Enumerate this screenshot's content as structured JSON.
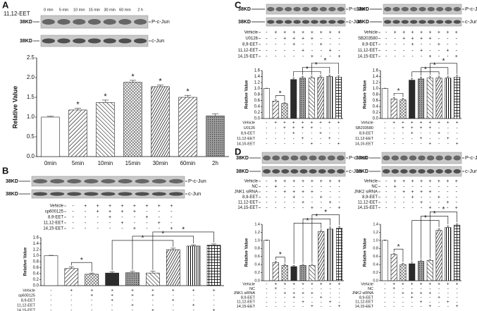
{
  "figures": [
    {
      "label": "A",
      "treatment": "11,12-EET",
      "lanes": [
        "0 min",
        "5 min",
        "10 min",
        "15 min",
        "30 min",
        "60 min",
        "2 h"
      ],
      "marker": "38KD",
      "bands": [
        "P-c-Jun",
        "c-Jun"
      ]
    },
    {
      "label": "B",
      "marker": "38KD",
      "bands": [
        "P-c-Jun",
        "c-Jun"
      ],
      "rows": [
        {
          "label": "Vehicle",
          "signs": [
            "-",
            "+",
            "+",
            "+",
            "+",
            "+",
            "+",
            "+",
            "+"
          ]
        },
        {
          "label": "sp600125",
          "signs": [
            "-",
            "-",
            "+",
            "+",
            "+",
            "+",
            "-",
            "-",
            "-"
          ]
        },
        {
          "label": "8,9-EET",
          "signs": [
            "-",
            "-",
            "-",
            "+",
            "-",
            "-",
            "+",
            "-",
            "-"
          ]
        },
        {
          "label": "11,12-EET",
          "signs": [
            "-",
            "-",
            "-",
            "-",
            "+",
            "-",
            "-",
            "+",
            "-"
          ]
        },
        {
          "label": "14,15-EET",
          "signs": [
            "-",
            "-",
            "-",
            "-",
            "-",
            "+",
            "-",
            "-",
            "+"
          ]
        }
      ]
    },
    {
      "label": "C",
      "marker": "38KD",
      "bands": [
        "P-c-Jun",
        "c-Jun"
      ],
      "rows": [
        {
          "label": "Vehicle",
          "signs": [
            "-",
            "+",
            "+",
            "+",
            "+",
            "+",
            "+",
            "+",
            "+"
          ]
        },
        {
          "label": "U0126",
          "signs": [
            "-",
            "-",
            "+",
            "+",
            "+",
            "+",
            "-",
            "-",
            "-"
          ]
        },
        {
          "label": "8,9-EET",
          "signs": [
            "-",
            "-",
            "-",
            "+",
            "-",
            "-",
            "+",
            "-",
            "-"
          ]
        },
        {
          "label": "11,12-EET",
          "signs": [
            "-",
            "-",
            "-",
            "-",
            "+",
            "-",
            "-",
            "+",
            "-"
          ]
        },
        {
          "label": "14,15-EET",
          "signs": [
            "-",
            "-",
            "-",
            "-",
            "-",
            "+",
            "-",
            "-",
            "+"
          ]
        }
      ]
    },
    {
      "marker": "38KD",
      "bands": [
        "P-c-Jun",
        "c-Jun"
      ],
      "rows": [
        {
          "label": "Vehicle",
          "signs": [
            "-",
            "+",
            "+",
            "+",
            "+",
            "+",
            "+",
            "+",
            "+"
          ]
        },
        {
          "label": "SB203580",
          "signs": [
            "-",
            "-",
            "+",
            "+",
            "+",
            "+",
            "-",
            "-",
            "-"
          ]
        },
        {
          "label": "8,9-EET",
          "signs": [
            "-",
            "-",
            "-",
            "+",
            "-",
            "-",
            "+",
            "-",
            "-"
          ]
        },
        {
          "label": "11,12-EET",
          "signs": [
            "-",
            "-",
            "-",
            "-",
            "+",
            "-",
            "-",
            "+",
            "-"
          ]
        },
        {
          "label": "14,15-EET",
          "signs": [
            "-",
            "-",
            "-",
            "-",
            "-",
            "+",
            "-",
            "-",
            "+"
          ]
        }
      ]
    },
    {
      "label": "D",
      "marker": "38KD",
      "bands": [
        "P-c-Jun",
        "c-Jun"
      ],
      "rows": [
        {
          "label": "Vehicle",
          "signs": [
            "-",
            "+",
            "+",
            "+",
            "+",
            "+",
            "+",
            "+",
            "+"
          ]
        },
        {
          "label": "NC",
          "signs": [
            "-",
            "+",
            "-",
            "-",
            "-",
            "-",
            "-",
            "-",
            "-"
          ]
        },
        {
          "label": "JNK1 siRNA",
          "signs": [
            "-",
            "-",
            "+",
            "+",
            "+",
            "+",
            "-",
            "-",
            "-"
          ]
        },
        {
          "label": "8,9-EET",
          "signs": [
            "-",
            "-",
            "-",
            "+",
            "-",
            "-",
            "+",
            "-",
            "-"
          ]
        },
        {
          "label": "11,12-EET",
          "signs": [
            "-",
            "-",
            "-",
            "-",
            "+",
            "-",
            "-",
            "+",
            "-"
          ]
        },
        {
          "label": "14,15-EET",
          "signs": [
            "-",
            "-",
            "-",
            "-",
            "-",
            "+",
            "-",
            "-",
            "+"
          ]
        }
      ]
    },
    {
      "marker": "38KD",
      "bands": [
        "P-c-Jun",
        "c-Jun"
      ],
      "rows": [
        {
          "label": "Vehicle",
          "signs": [
            "-",
            "+",
            "+",
            "+",
            "+",
            "+",
            "+",
            "+",
            "+"
          ]
        },
        {
          "label": "NC",
          "signs": [
            "-",
            "+",
            "-",
            "-",
            "-",
            "-",
            "-",
            "-",
            "-"
          ]
        },
        {
          "label": "JNK2 siRNA",
          "signs": [
            "-",
            "-",
            "+",
            "+",
            "+",
            "+",
            "-",
            "-",
            "-"
          ]
        },
        {
          "label": "8,9-EET",
          "signs": [
            "-",
            "-",
            "-",
            "+",
            "-",
            "-",
            "+",
            "-",
            "-"
          ]
        },
        {
          "label": "11,12-EET",
          "signs": [
            "-",
            "-",
            "-",
            "-",
            "+",
            "-",
            "-",
            "+",
            "-"
          ]
        },
        {
          "label": "14,15-EET",
          "signs": [
            "-",
            "-",
            "-",
            "-",
            "-",
            "+",
            "-",
            "-",
            "+"
          ]
        }
      ]
    }
  ],
  "chart_data": [
    {
      "type": "bar",
      "y_label": "Relative Value",
      "color": "#222222",
      "categories": [
        "0min",
        "5min",
        "10min",
        "15min",
        "30min",
        "60min",
        "2h"
      ],
      "values": [
        1.0,
        1.18,
        1.37,
        1.88,
        1.77,
        1.5,
        1.03
      ],
      "errors": [
        0.02,
        0.04,
        0.06,
        0.05,
        0.04,
        0.05,
        0.05
      ],
      "significance": [
        null,
        "*",
        "*",
        "*",
        "*",
        "*",
        null
      ],
      "ylim": [
        0,
        2.5
      ],
      "yticks": [
        {
          "value": 0,
          "label": "0.0"
        },
        0.5,
        {
          "value": 1,
          "label": "1.0"
        },
        1.5,
        {
          "value": 2,
          "label": "2.0"
        },
        2.5
      ]
    },
    {
      "type": "bar",
      "y_label": "Relative Value",
      "color": "#222222",
      "values": [
        1.0,
        0.57,
        0.38,
        0.42,
        0.43,
        0.42,
        1.2,
        1.32,
        1.35
      ],
      "errors": [
        0.01,
        0.06,
        0.04,
        0.04,
        0.05,
        0.06,
        0.05,
        0.04,
        0.04
      ],
      "brackets": [
        "*",
        "*",
        "*",
        "*"
      ],
      "ylim": [
        0,
        1.6
      ],
      "yticks": [
        {
          "value": 0,
          "label": "0.0"
        },
        0.2,
        0.4,
        0.6,
        0.8,
        {
          "value": 1,
          "label": "1.0"
        },
        1.2,
        1.4,
        1.6
      ]
    },
    {
      "type": "bar",
      "y_label": "Relative Value",
      "color": "#222222",
      "values": [
        1.0,
        0.58,
        0.5,
        1.3,
        1.35,
        1.35,
        1.37,
        1.4,
        1.38
      ],
      "errors": [
        0.01,
        0.04,
        0.04,
        0.05,
        0.05,
        0.06,
        0.05,
        0.05,
        0.05
      ],
      "brackets": [
        "*",
        "*",
        "*",
        "*"
      ],
      "ylim": [
        0,
        1.6
      ],
      "yticks": [
        {
          "value": 0,
          "label": "0.0"
        },
        0.2,
        0.4,
        0.6,
        0.8,
        {
          "value": 1,
          "label": "1.0"
        },
        1.2,
        1.4,
        1.6
      ]
    },
    {
      "type": "bar",
      "y_label": "Relative Value",
      "color": "#222222",
      "values": [
        1.0,
        0.65,
        0.62,
        1.28,
        1.32,
        1.35,
        1.35,
        1.35,
        1.38
      ],
      "errors": [
        0.01,
        0.05,
        0.05,
        0.06,
        0.06,
        0.06,
        0.06,
        0.06,
        0.06
      ],
      "brackets": [
        "*",
        "*",
        "*",
        "*"
      ],
      "ylim": [
        0,
        1.6
      ],
      "yticks": [
        {
          "value": 0,
          "label": "0.0"
        },
        0.2,
        0.4,
        0.6,
        0.8,
        {
          "value": 1,
          "label": "1.0"
        },
        1.2,
        1.4,
        1.6
      ]
    },
    {
      "type": "bar",
      "y_label": "Relative Value",
      "color": "#222222",
      "values": [
        1.0,
        0.45,
        0.38,
        0.35,
        0.38,
        0.38,
        1.22,
        1.28,
        1.3
      ],
      "errors": [
        0.01,
        0.03,
        0.03,
        0.03,
        0.03,
        0.03,
        0.04,
        0.05,
        0.04
      ],
      "brackets": [
        "*",
        "*",
        "*",
        "*"
      ],
      "ylim": [
        0,
        1.4
      ],
      "yticks": [
        {
          "value": 0,
          "label": "0.0"
        },
        0.2,
        0.4,
        0.6,
        0.8,
        {
          "value": 1,
          "label": "1.0"
        },
        1.2,
        1.4
      ]
    },
    {
      "type": "bar",
      "y_label": "Relative Value",
      "color": "#222222",
      "values": [
        1.0,
        0.65,
        0.4,
        0.42,
        0.48,
        0.5,
        1.25,
        1.32,
        1.38
      ],
      "errors": [
        0.01,
        0.03,
        0.03,
        0.04,
        0.03,
        0.03,
        0.04,
        0.04,
        0.03
      ],
      "brackets": [
        "*",
        "*",
        "*",
        "*"
      ],
      "ylim": [
        0,
        1.4
      ],
      "yticks": [
        {
          "value": 0,
          "label": "0.0"
        },
        0.2,
        0.4,
        0.6,
        0.8,
        {
          "value": 1,
          "label": "1.0"
        },
        1.2,
        1.4
      ]
    }
  ]
}
